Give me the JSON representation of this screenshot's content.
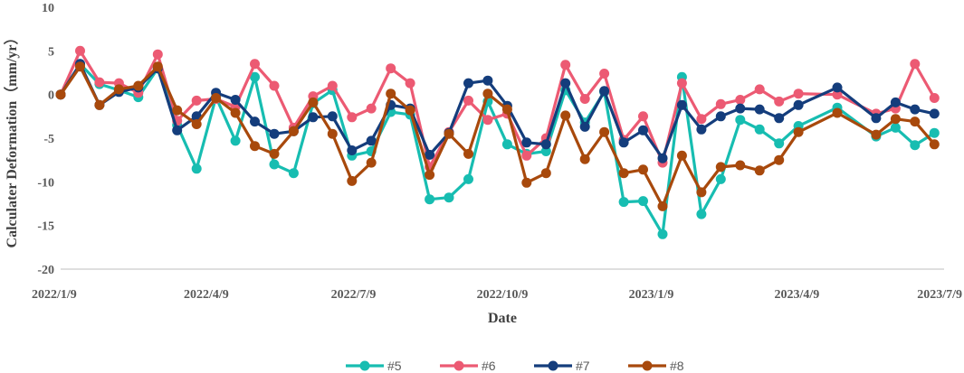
{
  "chart_data": {
    "type": "line",
    "xlabel": "Date",
    "ylabel": "Calculater Deformation（mm/yr）",
    "ylim": [
      -20,
      10
    ],
    "yticks": [
      10,
      5,
      0,
      -5,
      -10,
      -15,
      -20
    ],
    "xlim": [
      "2022-01-09",
      "2023-07-09"
    ],
    "xticks": [
      {
        "date": "2022-01-09",
        "label": "2022/1/9"
      },
      {
        "date": "2022-04-09",
        "label": "2022/4/9"
      },
      {
        "date": "2022-07-09",
        "label": "2022/7/9"
      },
      {
        "date": "2022-10-09",
        "label": "2022/10/9"
      },
      {
        "date": "2023-01-09",
        "label": "2023/1/9"
      },
      {
        "date": "2023-04-09",
        "label": "2023/4/9"
      },
      {
        "date": "2023-07-09",
        "label": "2023/7/9"
      }
    ],
    "grid": false,
    "legend": "bottom",
    "x": [
      "2022-01-09",
      "2022-01-21",
      "2022-02-02",
      "2022-02-14",
      "2022-02-26",
      "2022-03-10",
      "2022-03-22",
      "2022-04-03",
      "2022-04-15",
      "2022-04-27",
      "2022-05-09",
      "2022-05-21",
      "2022-06-02",
      "2022-06-14",
      "2022-06-26",
      "2022-07-08",
      "2022-07-20",
      "2022-08-01",
      "2022-08-13",
      "2022-08-25",
      "2022-09-06",
      "2022-09-18",
      "2022-09-30",
      "2022-10-12",
      "2022-10-24",
      "2022-11-05",
      "2022-11-17",
      "2022-11-29",
      "2022-12-11",
      "2022-12-23",
      "2023-01-04",
      "2023-01-16",
      "2023-01-28",
      "2023-02-09",
      "2023-02-21",
      "2023-03-05",
      "2023-03-17",
      "2023-03-29",
      "2023-04-10",
      "2023-05-04",
      "2023-05-28",
      "2023-06-09",
      "2023-06-21",
      "2023-07-03"
    ],
    "series": [
      {
        "name": "#5",
        "color": "#17BDB1",
        "values": [
          0,
          3.5,
          1.2,
          0.5,
          -0.3,
          3,
          -3.5,
          -8.5,
          -0.3,
          -5.3,
          2,
          -8,
          -9,
          -1,
          0.5,
          -7,
          -6.5,
          -2,
          -2.3,
          -12,
          -11.8,
          -9.7,
          -0.8,
          -5.7,
          -6.8,
          -6.5,
          0.5,
          -3.2,
          0.3,
          -12.3,
          -12.2,
          -16,
          2,
          -13.7,
          -9.7,
          -2.9,
          -4,
          -5.6,
          -3.6,
          -1.5,
          -4.8,
          -3.8,
          -5.8,
          -4.4
        ]
      },
      {
        "name": "#6",
        "color": "#EC5A73",
        "values": [
          0,
          5,
          1.4,
          1.3,
          0.2,
          4.6,
          -3,
          -0.7,
          -0.5,
          -1.4,
          3.5,
          1,
          -3.8,
          -0.2,
          1,
          -2.6,
          -1.6,
          3,
          1.3,
          -8.3,
          -4.3,
          -0.7,
          -2.9,
          -2.2,
          -7,
          -5,
          3.4,
          -0.5,
          2.4,
          -5.2,
          -2.5,
          -7.8,
          1.3,
          -2.8,
          -1.1,
          -0.6,
          0.6,
          -0.8,
          0.1,
          0,
          -2.2,
          -1.6,
          3.5,
          -0.4
        ]
      },
      {
        "name": "#7",
        "color": "#143D7C",
        "values": [
          0,
          3.5,
          -1.2,
          0.3,
          0.8,
          3,
          -4.1,
          -2.5,
          0.2,
          -0.6,
          -3.1,
          -4.5,
          -4.2,
          -2.6,
          -2.5,
          -6.4,
          -5.3,
          -1.2,
          -1.6,
          -6.9,
          -4.4,
          1.3,
          1.6,
          -1.3,
          -5.5,
          -5.7,
          1.3,
          -3.7,
          0.4,
          -5.5,
          -4.1,
          -7.3,
          -1.2,
          -4,
          -2.5,
          -1.6,
          -1.7,
          -2.7,
          -1.2,
          0.8,
          -2.7,
          -0.9,
          -1.7,
          -2.2
        ]
      },
      {
        "name": "#8",
        "color": "#A8490C",
        "values": [
          0,
          3.2,
          -1.2,
          0.6,
          1,
          3.2,
          -1.8,
          -3.4,
          -0.4,
          -2.1,
          -5.9,
          -6.8,
          -4.2,
          -0.9,
          -4.5,
          -9.9,
          -7.8,
          0.1,
          -1.8,
          -9.2,
          -4.5,
          -6.8,
          0.1,
          -1.7,
          -10.1,
          -9,
          -2.4,
          -7.4,
          -4.3,
          -9,
          -8.6,
          -12.8,
          -7,
          -11.2,
          -8.3,
          -8.1,
          -8.7,
          -7.5,
          -4.3,
          -2.1,
          -4.6,
          -2.8,
          -3.1,
          -5.7
        ]
      }
    ]
  }
}
